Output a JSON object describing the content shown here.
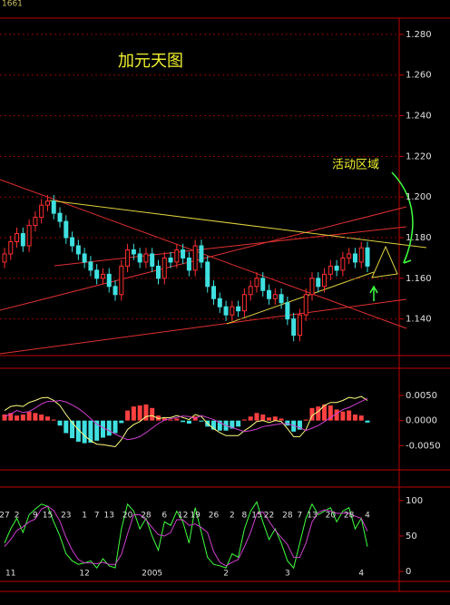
{
  "header": "1661",
  "chart_data": [
    {
      "type": "candlestick",
      "title": "加元天图",
      "annotation": "活动区域",
      "up_color": "#ff3030",
      "down_color": "#40e0e0",
      "ylim": [
        1.122,
        1.288
      ],
      "yticks": [
        {
          "value": 1.14,
          "label": "1.140"
        },
        {
          "value": 1.16,
          "label": "1.160"
        },
        {
          "value": 1.18,
          "label": "1.180"
        },
        {
          "value": 1.2,
          "label": "1.200"
        },
        {
          "value": 1.22,
          "label": "1.220"
        },
        {
          "value": 1.24,
          "label": "1.240"
        },
        {
          "value": 1.26,
          "label": "1.260"
        },
        {
          "value": 1.28,
          "label": "1.280"
        }
      ],
      "grid": true,
      "open": [
        1.168,
        1.172,
        1.178,
        1.182,
        1.176,
        1.186,
        1.19,
        1.196,
        1.198,
        1.192,
        1.188,
        1.18,
        1.176,
        1.172,
        1.168,
        1.164,
        1.16,
        1.162,
        1.156,
        1.152,
        1.166,
        1.174,
        1.172,
        1.168,
        1.172,
        1.166,
        1.16,
        1.17,
        1.168,
        1.174,
        1.17,
        1.164,
        1.176,
        1.168,
        1.156,
        1.15,
        1.146,
        1.142,
        1.146,
        1.144,
        1.152,
        1.156,
        1.16,
        1.154,
        1.15,
        1.152,
        1.148,
        1.14,
        1.132,
        1.142,
        1.152,
        1.16,
        1.156,
        1.162,
        1.166,
        1.164,
        1.17,
        1.172,
        1.168,
        1.175
      ],
      "high": [
        1.175,
        1.181,
        1.185,
        1.185,
        1.189,
        1.193,
        1.199,
        1.201,
        1.201,
        1.195,
        1.191,
        1.183,
        1.179,
        1.175,
        1.171,
        1.167,
        1.165,
        1.165,
        1.159,
        1.169,
        1.177,
        1.177,
        1.175,
        1.175,
        1.175,
        1.169,
        1.173,
        1.173,
        1.177,
        1.177,
        1.173,
        1.179,
        1.179,
        1.171,
        1.159,
        1.153,
        1.149,
        1.149,
        1.149,
        1.155,
        1.159,
        1.163,
        1.163,
        1.157,
        1.155,
        1.155,
        1.151,
        1.143,
        1.145,
        1.155,
        1.163,
        1.163,
        1.165,
        1.169,
        1.169,
        1.173,
        1.175,
        1.175,
        1.178,
        1.178
      ],
      "low": [
        1.165,
        1.169,
        1.175,
        1.173,
        1.173,
        1.183,
        1.187,
        1.193,
        1.189,
        1.185,
        1.177,
        1.173,
        1.169,
        1.165,
        1.161,
        1.157,
        1.157,
        1.153,
        1.149,
        1.149,
        1.163,
        1.169,
        1.165,
        1.165,
        1.163,
        1.157,
        1.157,
        1.165,
        1.165,
        1.167,
        1.161,
        1.161,
        1.165,
        1.153,
        1.147,
        1.143,
        1.139,
        1.139,
        1.141,
        1.141,
        1.149,
        1.153,
        1.151,
        1.147,
        1.147,
        1.145,
        1.137,
        1.129,
        1.129,
        1.139,
        1.149,
        1.153,
        1.153,
        1.159,
        1.161,
        1.161,
        1.167,
        1.165,
        1.165,
        1.163
      ],
      "close": [
        1.172,
        1.178,
        1.182,
        1.176,
        1.186,
        1.19,
        1.196,
        1.198,
        1.192,
        1.188,
        1.18,
        1.176,
        1.172,
        1.168,
        1.164,
        1.16,
        1.162,
        1.156,
        1.152,
        1.166,
        1.174,
        1.172,
        1.168,
        1.172,
        1.166,
        1.16,
        1.17,
        1.168,
        1.174,
        1.17,
        1.164,
        1.176,
        1.168,
        1.156,
        1.15,
        1.146,
        1.142,
        1.146,
        1.144,
        1.152,
        1.156,
        1.16,
        1.154,
        1.15,
        1.152,
        1.148,
        1.14,
        1.132,
        1.142,
        1.152,
        1.16,
        1.156,
        1.162,
        1.166,
        1.164,
        1.17,
        1.172,
        1.168,
        1.175,
        1.166
      ]
    },
    {
      "type": "macd",
      "ylim": [
        -0.0098,
        0.0104
      ],
      "yticks": [
        {
          "value": -0.005,
          "label": "-0.0050"
        },
        {
          "value": 0,
          "label": "0.0000"
        },
        {
          "value": 0.005,
          "label": "0.0050"
        }
      ],
      "histogram": {
        "up_color": "#ff4040",
        "down_color": "#40e0e0",
        "values": [
          0.0012,
          0.0015,
          0.001,
          0.0012,
          0.0018,
          0.0015,
          0.0012,
          0.0008,
          0.0002,
          -0.001,
          -0.0025,
          -0.0035,
          -0.0042,
          -0.0045,
          -0.0044,
          -0.004,
          -0.0034,
          -0.003,
          -0.0025,
          -0.0005,
          0.002,
          0.0028,
          0.003,
          0.0032,
          0.0025,
          0.001,
          0.0005,
          0.0002,
          0.0004,
          -0.0003,
          -0.0006,
          0.0008,
          -0.0002,
          -0.0012,
          -0.0018,
          -0.002,
          -0.002,
          -0.0016,
          -0.0012,
          0.0002,
          0.0008,
          0.0015,
          0.0012,
          0.0006,
          0.0008,
          0.0004,
          -0.001,
          -0.0022,
          -0.0018,
          0.0002,
          0.0025,
          0.0028,
          0.0032,
          0.003,
          0.0022,
          0.0018,
          0.002,
          0.0012,
          0.001,
          -0.0004
        ]
      },
      "series": [
        {
          "color": "#ffff80",
          "values": [
            0.002,
            0.0028,
            0.003,
            0.0028,
            0.0036,
            0.004,
            0.0045,
            0.0046,
            0.004,
            0.003,
            0.0012,
            -0.0004,
            -0.0018,
            -0.003,
            -0.004,
            -0.0047,
            -0.0048,
            -0.005,
            -0.0052,
            -0.0038,
            -0.0018,
            -0.0008,
            -0.0002,
            0.0008,
            0.001,
            0.0004,
            0.0006,
            0.0006,
            0.001,
            0.0006,
            0.0002,
            0.0012,
            0.0008,
            -0.0006,
            -0.0016,
            -0.0024,
            -0.003,
            -0.003,
            -0.003,
            -0.002,
            -0.0012,
            -0.0002,
            0.0,
            -0.0004,
            0.0,
            -0.0002,
            -0.0016,
            -0.0032,
            -0.0032,
            -0.0018,
            0.001,
            0.0018,
            0.003,
            0.0036,
            0.0036,
            0.004,
            0.0046,
            0.0044,
            0.0048,
            0.004
          ]
        },
        {
          "color": "#d040d0",
          "values": [
            0.0008,
            0.0013,
            0.002,
            0.0016,
            0.0018,
            0.0025,
            0.0033,
            0.0038,
            0.0038,
            0.004,
            0.0037,
            0.0031,
            0.0024,
            0.0015,
            0.0004,
            -0.0007,
            -0.0014,
            -0.002,
            -0.0027,
            -0.0033,
            -0.0038,
            -0.0036,
            -0.0032,
            -0.0024,
            -0.0015,
            -0.0006,
            0.0001,
            0.0004,
            0.0006,
            0.0009,
            0.0008,
            0.0004,
            0.001,
            0.0006,
            0.0002,
            -0.0004,
            -0.001,
            -0.0014,
            -0.0018,
            -0.0022,
            -0.002,
            -0.0017,
            -0.0012,
            -0.001,
            -0.0008,
            -0.0006,
            -0.0006,
            -0.001,
            -0.0014,
            -0.002,
            -0.0015,
            -0.001,
            -0.0002,
            0.0006,
            0.0014,
            0.0022,
            0.0026,
            0.0032,
            0.0038,
            0.0044
          ]
        }
      ]
    },
    {
      "type": "stochastic",
      "ylim": [
        -14,
        119
      ],
      "yticks": [
        0,
        50,
        100
      ],
      "categories": [
        "27",
        null,
        "2",
        null,
        null,
        "9",
        null,
        "15",
        null,
        null,
        "23",
        null,
        null,
        "1",
        null,
        "7",
        null,
        "13",
        null,
        null,
        "20",
        null,
        null,
        "28",
        null,
        null,
        "6",
        null,
        null,
        "12",
        null,
        "19",
        null,
        null,
        "26",
        null,
        null,
        "2",
        null,
        "8",
        null,
        "15",
        null,
        "22",
        null,
        null,
        "28",
        null,
        "7",
        null,
        "13",
        null,
        null,
        "20",
        null,
        null,
        "28",
        null,
        null,
        "4"
      ],
      "months": [
        null,
        "11",
        null,
        null,
        null,
        null,
        null,
        null,
        null,
        null,
        null,
        null,
        null,
        "12",
        null,
        null,
        null,
        null,
        null,
        null,
        null,
        null,
        null,
        null,
        "2005",
        null,
        null,
        null,
        null,
        null,
        null,
        null,
        null,
        null,
        null,
        null,
        "2",
        null,
        null,
        null,
        null,
        null,
        null,
        null,
        null,
        null,
        "3",
        null,
        null,
        null,
        null,
        null,
        null,
        null,
        null,
        null,
        null,
        null,
        "4",
        null
      ],
      "series": [
        {
          "color": "#40ff40",
          "values": [
            40,
            60,
            75,
            55,
            80,
            88,
            95,
            92,
            70,
            50,
            25,
            15,
            10,
            12,
            15,
            5,
            18,
            8,
            5,
            60,
            95,
            85,
            60,
            75,
            50,
            30,
            70,
            65,
            85,
            70,
            40,
            90,
            55,
            20,
            10,
            8,
            5,
            25,
            20,
            60,
            85,
            98,
            70,
            45,
            60,
            40,
            15,
            5,
            40,
            75,
            95,
            80,
            85,
            90,
            70,
            85,
            90,
            60,
            75,
            35
          ]
        },
        {
          "color": "#d040d0",
          "values": [
            35,
            45,
            58,
            63,
            70,
            74,
            88,
            92,
            86,
            71,
            48,
            30,
            17,
            12,
            12,
            11,
            13,
            10,
            10,
            24,
            53,
            80,
            80,
            73,
            62,
            52,
            50,
            55,
            73,
            73,
            65,
            67,
            62,
            55,
            28,
            13,
            8,
            13,
            17,
            35,
            55,
            81,
            84,
            71,
            58,
            48,
            38,
            20,
            20,
            40,
            70,
            83,
            87,
            85,
            82,
            82,
            82,
            78,
            75,
            57
          ]
        }
      ]
    }
  ]
}
